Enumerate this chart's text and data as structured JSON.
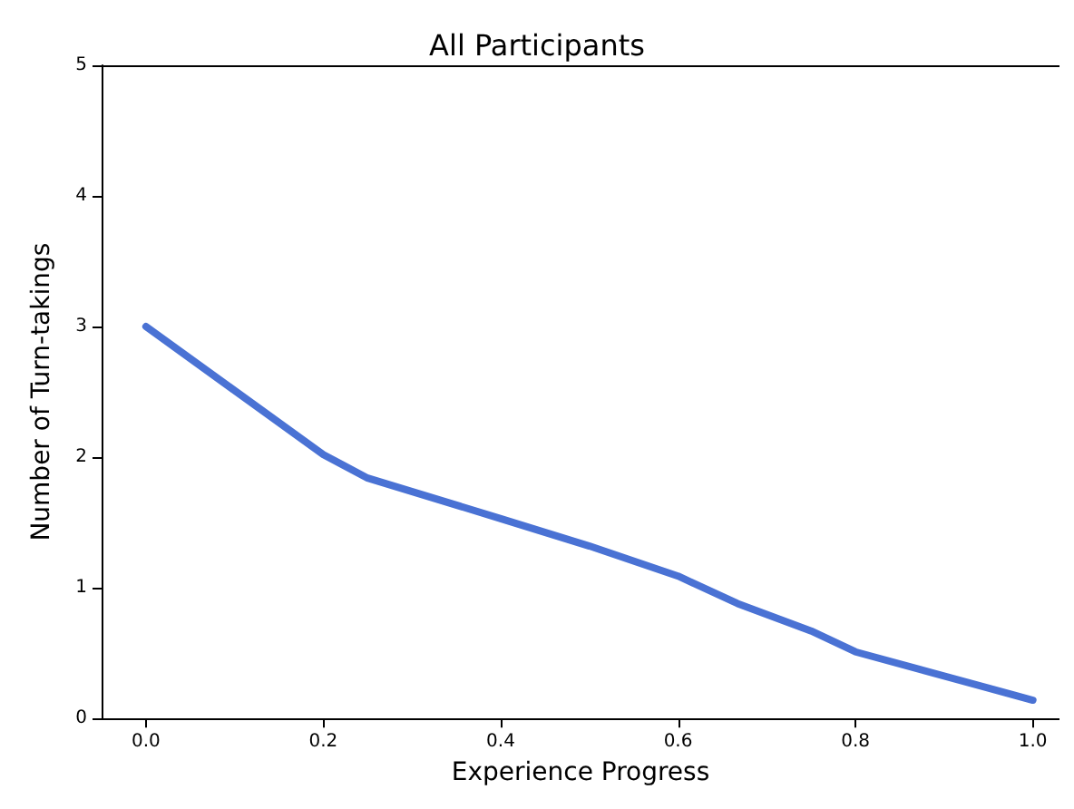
{
  "chart_data": {
    "type": "line",
    "title": "All Participants",
    "xlabel": "Experience Progress",
    "ylabel": "Number of Turn-takings",
    "x": [
      0,
      0.2,
      0.25,
      0.4,
      0.5,
      0.6,
      0.667,
      0.75,
      0.8,
      1.0
    ],
    "series": [
      {
        "color": "#4a72d4",
        "values": [
          3.0,
          2.02,
          1.84,
          1.53,
          1.32,
          1.09,
          0.88,
          0.67,
          0.51,
          0.14
        ]
      }
    ],
    "xlim": [
      -0.05,
      1.03
    ],
    "xticks": [
      {
        "value": 0,
        "label": "0.0"
      },
      0.2,
      0.4,
      0.6,
      0.8,
      {
        "value": 1,
        "label": "1.0"
      }
    ],
    "ylim": [
      0,
      5
    ],
    "yticks": [
      0,
      1,
      2,
      3,
      4,
      5
    ],
    "grid": false,
    "marker": "none",
    "line_style": "solid"
  }
}
